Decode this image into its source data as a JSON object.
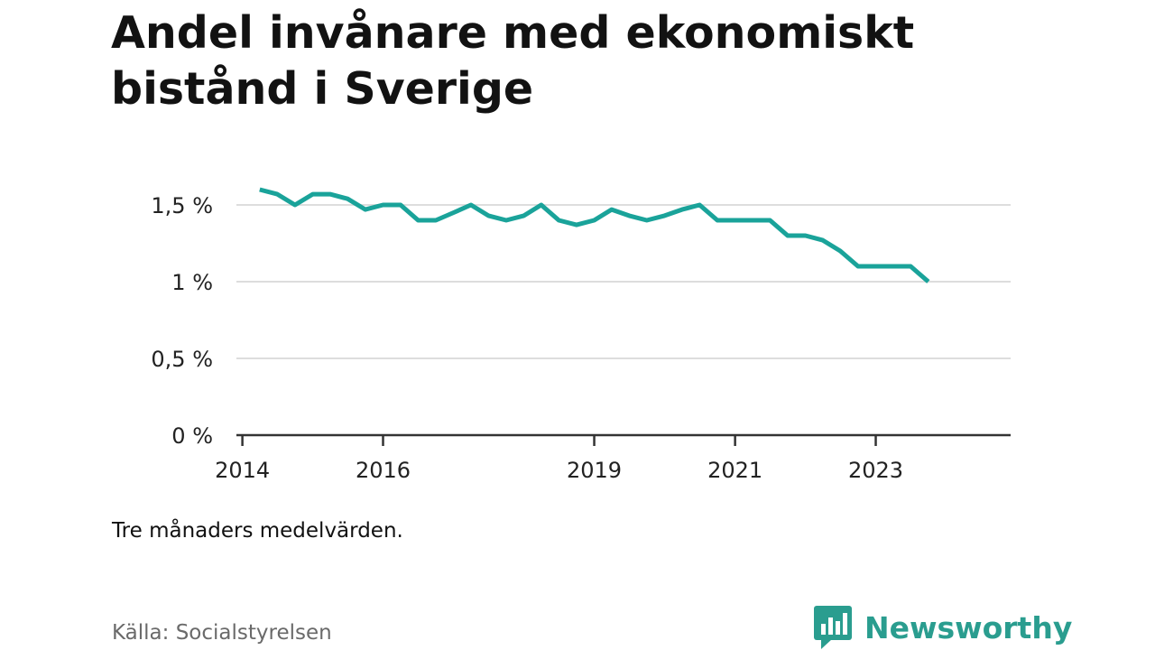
{
  "title": "Andel invånare med ekonomiskt bistånd i Sverige",
  "note": "Tre månaders medelvärden.",
  "source": "Källa: Socialstyrelsen",
  "brand": {
    "name": "Newsworthy",
    "icon": "bar-chart-bubble-icon",
    "color": "#2a9d8f"
  },
  "chart_data": {
    "type": "line",
    "x_type": "date",
    "xlim": [
      "2013-12-01",
      "2024-12-01"
    ],
    "ylim": [
      0,
      1.5
    ],
    "y_ticks": [
      {
        "value": 0,
        "label": "0 %"
      },
      {
        "value": 0.5,
        "label": "0,5 %"
      },
      {
        "value": 1,
        "label": "1 %"
      },
      {
        "value": 1.5,
        "label": "1,5 %"
      }
    ],
    "x_ticks": [
      {
        "value": "2014-01-01",
        "label": "2014"
      },
      {
        "value": "2016-01-01",
        "label": "2016"
      },
      {
        "value": "2019-01-01",
        "label": "2019"
      },
      {
        "value": "2021-01-01",
        "label": "2021"
      },
      {
        "value": "2023-01-01",
        "label": "2023"
      }
    ],
    "grid": true,
    "color": "#1aa39a",
    "series": [
      {
        "x": [
          "2014-04-01",
          "2014-07-01",
          "2014-10-01",
          "2015-01-01",
          "2015-04-01",
          "2015-07-01",
          "2015-10-01",
          "2016-01-01",
          "2016-04-01",
          "2016-07-01",
          "2016-10-01",
          "2017-01-01",
          "2017-04-01",
          "2017-07-01",
          "2017-10-01",
          "2018-01-01",
          "2018-04-01",
          "2018-07-01",
          "2018-10-01",
          "2019-01-01",
          "2019-04-01",
          "2019-07-01",
          "2019-10-01",
          "2020-01-01",
          "2020-04-01",
          "2020-07-01",
          "2020-10-01",
          "2021-01-01",
          "2021-04-01",
          "2021-07-01",
          "2021-10-01",
          "2022-01-01",
          "2022-04-01",
          "2022-07-01",
          "2022-10-01",
          "2023-01-01",
          "2023-04-01",
          "2023-07-01",
          "2023-10-01"
        ],
        "values": [
          1.6,
          1.57,
          1.5,
          1.57,
          1.57,
          1.54,
          1.47,
          1.5,
          1.5,
          1.4,
          1.4,
          1.45,
          1.5,
          1.43,
          1.4,
          1.43,
          1.5,
          1.4,
          1.37,
          1.4,
          1.47,
          1.43,
          1.4,
          1.43,
          1.47,
          1.5,
          1.4,
          1.4,
          1.4,
          1.4,
          1.3,
          1.3,
          1.27,
          1.2,
          1.1,
          1.1,
          1.1,
          1.1,
          1.0
        ]
      }
    ]
  }
}
